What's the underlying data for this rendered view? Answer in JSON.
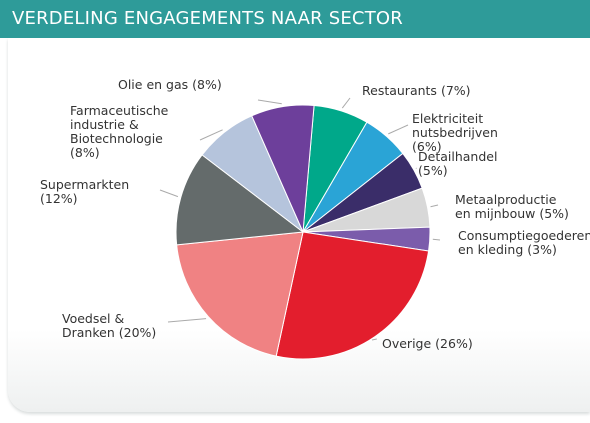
{
  "chart_data": {
    "type": "pie",
    "title": "VERDELING ENGAGEMENTS NAAR SECTOR",
    "categories": [
      "Restaurants",
      "Elektriciteit\nnutsbedrijven",
      "Detailhandel",
      "Metaalproductie\nen mijnbouw",
      "Consumptiegoederen\nen kleding",
      "Overige",
      "Voedsel &\nDranken",
      "Supermarkten",
      "Farmaceutische\nindustrie &\nBiotechnologie",
      "Olie en gas"
    ],
    "values": [
      7,
      6,
      5,
      5,
      3,
      26,
      20,
      12,
      8,
      8
    ],
    "value_labels": [
      "(7%)",
      "(6%)",
      "(5%)",
      "(5%)",
      "(3%)",
      "(26%)",
      "(20%)",
      "(12%)",
      "(8%)",
      "(8%)"
    ],
    "colors": [
      "#00a88a",
      "#2aa4d6",
      "#3a2d69",
      "#d8d8d8",
      "#7b5cab",
      "#e31e2d",
      "#f08283",
      "#646b6b",
      "#b5c4dc",
      "#6d3f9b"
    ]
  }
}
